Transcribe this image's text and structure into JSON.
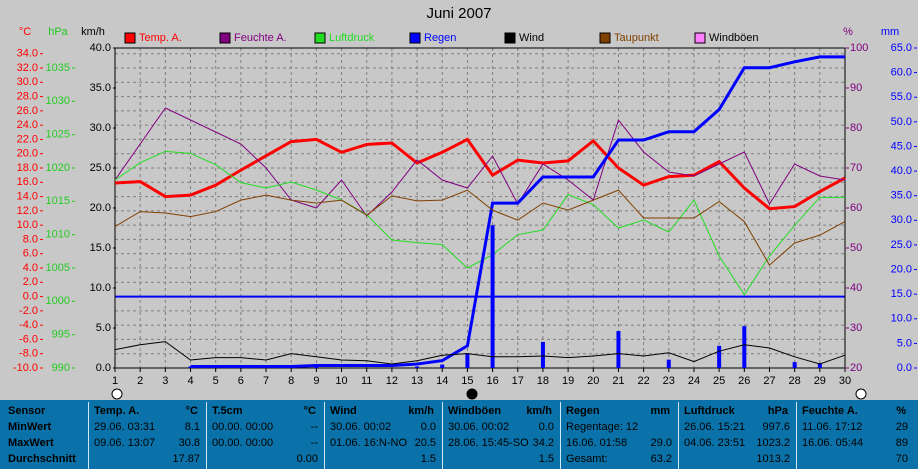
{
  "chart_data": {
    "type": "line",
    "title": "Juni 2007",
    "x": [
      1,
      2,
      3,
      4,
      5,
      6,
      7,
      8,
      9,
      10,
      11,
      12,
      13,
      14,
      15,
      16,
      17,
      18,
      19,
      20,
      21,
      22,
      23,
      24,
      25,
      26,
      27,
      28,
      29,
      30
    ],
    "xlim": [
      1,
      30
    ],
    "xticks": [
      1,
      2,
      3,
      4,
      5,
      6,
      7,
      8,
      9,
      10,
      11,
      12,
      13,
      14,
      15,
      16,
      17,
      18,
      19,
      20,
      21,
      22,
      23,
      24,
      25,
      26,
      27,
      28,
      29,
      30
    ],
    "grid": true,
    "axes": {
      "temp": {
        "unit": "°C",
        "color": "#ff0000",
        "ylim": [
          -10,
          34.8
        ],
        "yticks": [
          {
            "value": -10,
            "label": "-10.0"
          },
          {
            "value": -8,
            "label": "-8.0"
          },
          {
            "value": -6,
            "label": "-6.0"
          },
          {
            "value": -4,
            "label": "-4.0"
          },
          {
            "value": -2,
            "label": "-2.0"
          },
          {
            "value": 0,
            "label": "0.0"
          },
          {
            "value": 2,
            "label": "2.0"
          },
          {
            "value": 4,
            "label": "4.0"
          },
          {
            "value": 6,
            "label": "6.0"
          },
          {
            "value": 8,
            "label": "8.0"
          },
          {
            "value": 10,
            "label": "10.0"
          },
          {
            "value": 12,
            "label": "12.0"
          },
          {
            "value": 14,
            "label": "14.0"
          },
          {
            "value": 16,
            "label": "16.0"
          },
          {
            "value": 18,
            "label": "18.0"
          },
          {
            "value": 20,
            "label": "20.0"
          },
          {
            "value": 22,
            "label": "22.0"
          },
          {
            "value": 24,
            "label": "24.0"
          },
          {
            "value": 26,
            "label": "26.0"
          },
          {
            "value": 28,
            "label": "28.0"
          },
          {
            "value": 30,
            "label": "30.0"
          },
          {
            "value": 32,
            "label": "32.0"
          },
          {
            "value": 34,
            "label": "34.0"
          }
        ]
      },
      "press": {
        "unit": "hPa",
        "color": "#22cc22",
        "ylim": [
          990,
          1038
        ],
        "yticks": [
          990,
          995,
          1000,
          1005,
          1010,
          1015,
          1020,
          1025,
          1030,
          1035
        ]
      },
      "wind": {
        "unit": "km/h",
        "color": "#000000",
        "ylim": [
          0,
          40
        ],
        "yticks": [
          {
            "value": 0,
            "label": "0.0"
          },
          {
            "value": 5,
            "label": "5.0"
          },
          {
            "value": 10,
            "label": "10.0"
          },
          {
            "value": 15,
            "label": "15.0"
          },
          {
            "value": 20,
            "label": "20.0"
          },
          {
            "value": 25,
            "label": "25.0"
          },
          {
            "value": 30,
            "label": "30.0"
          },
          {
            "value": 35,
            "label": "35.0"
          },
          {
            "value": 40,
            "label": "40.0"
          }
        ]
      },
      "hum": {
        "unit": "%",
        "color": "#800080",
        "ylim": [
          20,
          100
        ],
        "yticks": [
          20,
          30,
          40,
          50,
          60,
          70,
          80,
          90,
          100
        ]
      },
      "rain": {
        "unit": "mm",
        "color": "#0000ff",
        "ylim": [
          0,
          65
        ],
        "yticks": [
          {
            "value": 0,
            "label": "0.0"
          },
          {
            "value": 5,
            "label": "5.0"
          },
          {
            "value": 10,
            "label": "10.0"
          },
          {
            "value": 15,
            "label": "15.0"
          },
          {
            "value": 20,
            "label": "20.0"
          },
          {
            "value": 25,
            "label": "25.0"
          },
          {
            "value": 30,
            "label": "30.0"
          },
          {
            "value": 35,
            "label": "35.0"
          },
          {
            "value": 40,
            "label": "40.0"
          },
          {
            "value": 45,
            "label": "45.0"
          },
          {
            "value": 50,
            "label": "50.0"
          },
          {
            "value": 55,
            "label": "55.0"
          },
          {
            "value": 60,
            "label": "60.0"
          },
          {
            "value": 65,
            "label": "65.0"
          }
        ]
      }
    },
    "series": [
      {
        "name": "Temp. A.",
        "color": "#ff0000",
        "axis": "temp",
        "width": 3,
        "values": [
          15.9,
          16.1,
          14.0,
          14.2,
          15.6,
          17.7,
          19.7,
          21.7,
          22.0,
          20.2,
          21.3,
          21.5,
          18.7,
          20.2,
          22.0,
          17.0,
          19.1,
          18.7,
          19.0,
          21.8,
          18.0,
          15.6,
          16.8,
          17.0,
          18.9,
          15.2,
          12.3,
          12.6,
          14.7,
          16.6
        ]
      },
      {
        "name": "Feuchte A.",
        "color": "#800080",
        "axis": "hum",
        "width": 1,
        "values": [
          67,
          76,
          85,
          82,
          79,
          76,
          70,
          62,
          60,
          67,
          58,
          64,
          72,
          67,
          65,
          73,
          61,
          71,
          67,
          62,
          82,
          74,
          69,
          68,
          71,
          74,
          61,
          71,
          68,
          67
        ]
      },
      {
        "name": "Luftdruck",
        "color": "#22dd22",
        "axis": "press",
        "width": 1,
        "values": [
          1018.2,
          1020.8,
          1022.5,
          1022.2,
          1020.5,
          1017.8,
          1017.0,
          1017.9,
          1016.7,
          1015.2,
          1013.0,
          1009.2,
          1008.8,
          1008.5,
          1005.0,
          1007.0,
          1010.0,
          1010.7,
          1016.0,
          1014.5,
          1011.0,
          1012.2,
          1010.4,
          1015.2,
          1006.8,
          1001.0,
          1006.8,
          1011.4,
          1015.6,
          1015.6
        ]
      },
      {
        "name": "Regen",
        "color": "#0000ff",
        "axis": "rain",
        "width": 3,
        "values": [
          null,
          null,
          null,
          0.3,
          0.3,
          0.3,
          0.3,
          0.3,
          0.5,
          0.5,
          0.5,
          0.5,
          0.8,
          1.5,
          4.5,
          33.5,
          33.5,
          38.8,
          38.8,
          38.8,
          46.3,
          46.3,
          48.0,
          48.0,
          52.5,
          61.0,
          61.0,
          62.2,
          63.2,
          63.2
        ],
        "daily": [
          0,
          0,
          0,
          0.3,
          0,
          0,
          0,
          0,
          0.2,
          0,
          0,
          0,
          0.3,
          0.7,
          3.0,
          29.0,
          0,
          5.3,
          0,
          0,
          7.5,
          0,
          1.7,
          0,
          4.5,
          8.5,
          0,
          1.2,
          1.0,
          0
        ]
      },
      {
        "name": "Wind",
        "color": "#000000",
        "axis": "wind",
        "width": 1,
        "values": [
          2.3,
          2.9,
          3.3,
          1.0,
          1.3,
          1.3,
          1.0,
          1.8,
          1.4,
          1.0,
          0.9,
          0.5,
          0.9,
          1.6,
          1.8,
          1.4,
          1.4,
          1.5,
          1.3,
          1.5,
          1.8,
          1.5,
          1.9,
          0.8,
          2.1,
          2.9,
          2.5,
          1.4,
          0.5,
          1.6
        ]
      },
      {
        "name": "Taupunkt",
        "color": "#804000",
        "axis": "temp",
        "width": 1,
        "values": [
          9.8,
          11.9,
          11.7,
          11.2,
          11.9,
          13.5,
          14.2,
          13.5,
          13.1,
          13.5,
          11.4,
          14.1,
          13.4,
          13.5,
          14.9,
          12.1,
          10.7,
          13.1,
          12.1,
          13.5,
          14.9,
          11.0,
          11.0,
          11.0,
          13.3,
          10.5,
          4.4,
          7.5,
          8.6,
          10.5
        ]
      },
      {
        "name": "Windböen",
        "color": "#ff80ff",
        "axis": "wind",
        "width": 1,
        "values": [
          null,
          null,
          null,
          null,
          null,
          null,
          null,
          null,
          null,
          null,
          null,
          null,
          null,
          null,
          null,
          null,
          null,
          null,
          null,
          null,
          null,
          null,
          null,
          null,
          null,
          null,
          null,
          null,
          null,
          null
        ]
      }
    ]
  },
  "table": {
    "row_labels": [
      "Sensor",
      "MinWert",
      "MaxWert",
      "Durchschnitt"
    ],
    "columns": [
      {
        "name": "Temp. A.",
        "unit": "°C",
        "rows": [
          {
            "left": "29.06. 03:31",
            "right": "8.1"
          },
          {
            "left": "09.06. 13:07",
            "right": "30.8"
          },
          {
            "right": "17.87"
          }
        ]
      },
      {
        "name": "T.5cm",
        "unit": "°C",
        "rows": [
          {
            "left": "00.00. 00:00",
            "right": "--"
          },
          {
            "left": "00.00. 00:00",
            "right": "--"
          },
          {
            "right": "0.00"
          }
        ]
      },
      {
        "name": "Wind",
        "unit": "km/h",
        "rows": [
          {
            "left": "30.06. 00:02",
            "right": "0.0"
          },
          {
            "left": "01.06. 16:N-NO",
            "right": "20.5"
          },
          {
            "right": "1.5"
          }
        ]
      },
      {
        "name": "Windböen",
        "unit": "km/h",
        "rows": [
          {
            "left": "30.06. 00:02",
            "right": "0.0"
          },
          {
            "left": "28.06. 15:45-SO",
            "right": "34.2"
          },
          {
            "right": "1.5"
          }
        ]
      },
      {
        "name": "Regen",
        "unit": "mm",
        "rows": [
          {
            "left": "Regentage: 12"
          },
          {
            "left": "16.06. 01:58",
            "right": "29.0"
          },
          {
            "left": "Gesamt:",
            "right": "63.2"
          }
        ]
      },
      {
        "name": "Luftdruck",
        "unit": "hPa",
        "rows": [
          {
            "left": "26.06. 15:21",
            "right": "997.6"
          },
          {
            "left": "04.06. 23:51",
            "right": "1023.2"
          },
          {
            "right": "1013.2"
          }
        ]
      },
      {
        "name": "Feuchte A.",
        "unit": "%",
        "rows": [
          {
            "left": "11.06. 17:12",
            "right": "29"
          },
          {
            "left": "16.06. 05:44",
            "right": "89"
          },
          {
            "right": "70"
          }
        ]
      }
    ]
  }
}
